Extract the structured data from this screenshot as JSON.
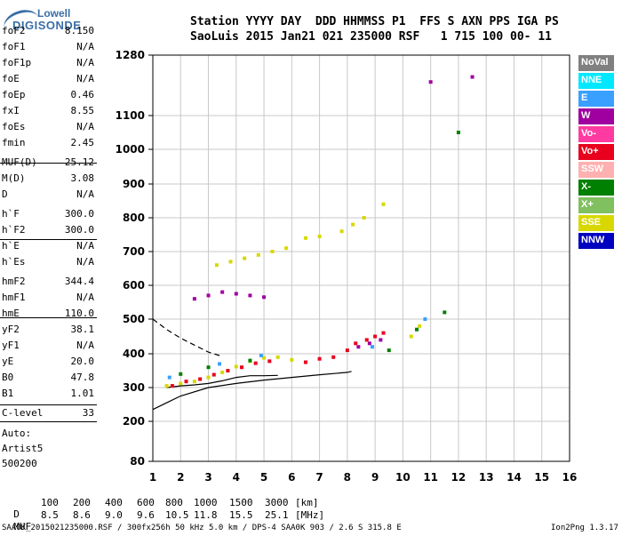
{
  "header": {
    "line1": "Station YYYY DAY  DDD HHMMSS P1  FFS S AXN PPS IGA PS",
    "line2": "SaoLuis 2015 Jan21 021 235000 RSF   1 715 100 00- 11"
  },
  "logo": {
    "line1": "Lowell",
    "line2": "DIGISONDE"
  },
  "params": [
    {
      "name": "foF2",
      "value": "8.150"
    },
    {
      "name": "foF1",
      "value": "N/A"
    },
    {
      "name": "foF1p",
      "value": "N/A"
    },
    {
      "name": "foE",
      "value": "N/A"
    },
    {
      "name": "foEp",
      "value": "0.46"
    },
    {
      "name": "fxI",
      "value": "8.55"
    },
    {
      "name": "foEs",
      "value": "N/A"
    },
    {
      "name": "fmin",
      "value": "2.45"
    },
    {
      "name": "MUF(D)",
      "value": "25.12"
    },
    {
      "name": "M(D)",
      "value": "3.08"
    },
    {
      "name": "D",
      "value": "N/A"
    },
    {
      "name": "h`F",
      "value": "300.0"
    },
    {
      "name": "h`F2",
      "value": "300.0"
    },
    {
      "name": "h`E",
      "value": "N/A"
    },
    {
      "name": "h`Es",
      "value": "N/A"
    },
    {
      "name": "hmF2",
      "value": "344.4"
    },
    {
      "name": "hmF1",
      "value": "N/A"
    },
    {
      "name": "hmE",
      "value": "110.0"
    },
    {
      "name": "yF2",
      "value": "38.1"
    },
    {
      "name": "yF1",
      "value": "N/A"
    },
    {
      "name": "yE",
      "value": "20.0"
    },
    {
      "name": "B0",
      "value": "47.8"
    },
    {
      "name": "B1",
      "value": "1.01"
    },
    {
      "name": "C-level",
      "value": "33"
    }
  ],
  "notes": [
    "Auto:",
    "Artist5",
    "500200"
  ],
  "legend": [
    {
      "label": "NoVal",
      "color": "#808080"
    },
    {
      "label": "NNE",
      "color": "#00e8ff"
    },
    {
      "label": "E",
      "color": "#3aa0ff"
    },
    {
      "label": "W",
      "color": "#a000a0"
    },
    {
      "label": "Vo-",
      "color": "#ff3aa0"
    },
    {
      "label": "Vo+",
      "color": "#e8001c"
    },
    {
      "label": "SSW",
      "color": "#ffb0b0"
    },
    {
      "label": "X-",
      "color": "#008000"
    },
    {
      "label": "X+",
      "color": "#80c060"
    },
    {
      "label": "SSE",
      "color": "#d8d800"
    },
    {
      "label": "NNW",
      "color": "#0000c0"
    }
  ],
  "dmuf": {
    "d_label": "D",
    "d_values": [
      "100",
      "200",
      "400",
      "600",
      "800",
      "1000",
      "1500",
      "3000",
      "[km]"
    ],
    "muf_label": "MUF",
    "muf_values": [
      "8.5",
      "8.6",
      "9.0",
      "9.6",
      "10.5",
      "11.8",
      "15.5",
      "25.1",
      "[MHz]"
    ]
  },
  "footer": {
    "left": "SAA0K_2015021235000.RSF / 300fx256h 50 kHz 5.0 km / DPS-4 SAA0K 903 / 2.6 S 315.8 E",
    "right": "Ion2Png 1.3.17"
  },
  "chart_data": {
    "type": "scatter",
    "title": "",
    "xlabel": "",
    "ylabel": "",
    "xlim": [
      1,
      16
    ],
    "ylim": [
      80,
      1280
    ],
    "x_ticks": [
      "1",
      "2",
      "3",
      "4",
      "5",
      "6",
      "7",
      "8",
      "9",
      "10",
      "11",
      "12",
      "13",
      "14",
      "15",
      "16"
    ],
    "y_ticks": [
      "80",
      "200",
      "300",
      "400",
      "500",
      "600",
      "700",
      "800",
      "900",
      "1000",
      "1100",
      "1280"
    ],
    "y_scale": "nonlinear",
    "grid": true,
    "series": [
      {
        "color": "#d8d800",
        "points": [
          [
            1.5,
            305
          ],
          [
            2.0,
            312
          ],
          [
            2.5,
            318
          ],
          [
            3.0,
            330
          ],
          [
            3.5,
            345
          ],
          [
            4.0,
            362
          ],
          [
            4.5,
            378
          ],
          [
            5.0,
            388
          ],
          [
            5.5,
            390
          ],
          [
            6.0,
            382
          ],
          [
            3.3,
            660
          ],
          [
            3.8,
            670
          ],
          [
            4.3,
            680
          ],
          [
            4.8,
            690
          ],
          [
            5.3,
            700
          ],
          [
            5.8,
            710
          ],
          [
            6.5,
            740
          ],
          [
            7.0,
            745
          ],
          [
            7.8,
            760
          ],
          [
            8.2,
            780
          ],
          [
            8.6,
            800
          ],
          [
            9.3,
            840
          ],
          [
            10.3,
            450
          ],
          [
            10.6,
            480
          ]
        ]
      },
      {
        "color": "#e8001c",
        "points": [
          [
            1.7,
            305
          ],
          [
            2.2,
            318
          ],
          [
            2.7,
            325
          ],
          [
            3.2,
            338
          ],
          [
            3.7,
            350
          ],
          [
            4.2,
            360
          ],
          [
            4.7,
            372
          ],
          [
            5.2,
            378
          ],
          [
            6.5,
            375
          ],
          [
            7.0,
            385
          ],
          [
            7.5,
            390
          ],
          [
            8.0,
            410
          ],
          [
            8.3,
            430
          ],
          [
            8.7,
            440
          ],
          [
            9.0,
            450
          ],
          [
            9.3,
            460
          ]
        ]
      },
      {
        "color": "#a000a0",
        "points": [
          [
            2.5,
            560
          ],
          [
            3.0,
            570
          ],
          [
            3.5,
            580
          ],
          [
            4.0,
            575
          ],
          [
            4.5,
            570
          ],
          [
            5.0,
            565
          ],
          [
            8.4,
            420
          ],
          [
            8.8,
            430
          ],
          [
            9.2,
            440
          ],
          [
            11.0,
            1200
          ],
          [
            12.5,
            1215
          ]
        ]
      },
      {
        "color": "#008000",
        "points": [
          [
            2.0,
            340
          ],
          [
            3.0,
            360
          ],
          [
            4.5,
            380
          ],
          [
            9.5,
            410
          ],
          [
            10.5,
            470
          ],
          [
            11.5,
            520
          ],
          [
            12.0,
            1050
          ]
        ]
      },
      {
        "color": "#3aa0ff",
        "points": [
          [
            1.6,
            330
          ],
          [
            3.4,
            370
          ],
          [
            4.9,
            395
          ],
          [
            8.9,
            420
          ],
          [
            10.8,
            500
          ]
        ]
      }
    ],
    "traces": [
      {
        "color": "#000000",
        "dash": false,
        "points": [
          [
            1.0,
            235
          ],
          [
            1.5,
            255
          ],
          [
            2.0,
            275
          ],
          [
            3.0,
            300
          ],
          [
            4.0,
            312
          ],
          [
            5.0,
            322
          ],
          [
            6.0,
            330
          ],
          [
            7.0,
            338
          ],
          [
            8.0,
            345
          ],
          [
            8.15,
            348
          ]
        ]
      },
      {
        "color": "#000000",
        "dash": true,
        "points": [
          [
            1.0,
            500
          ],
          [
            1.5,
            470
          ],
          [
            2.0,
            445
          ],
          [
            2.5,
            425
          ],
          [
            3.0,
            405
          ],
          [
            3.5,
            392
          ]
        ]
      },
      {
        "color": "#000000",
        "dash": false,
        "points": [
          [
            1.5,
            300
          ],
          [
            2.0,
            305
          ],
          [
            2.5,
            308
          ],
          [
            3.0,
            312
          ],
          [
            3.5,
            320
          ],
          [
            4.0,
            330
          ],
          [
            4.5,
            335
          ],
          [
            5.0,
            335
          ],
          [
            5.5,
            336
          ]
        ]
      }
    ]
  }
}
